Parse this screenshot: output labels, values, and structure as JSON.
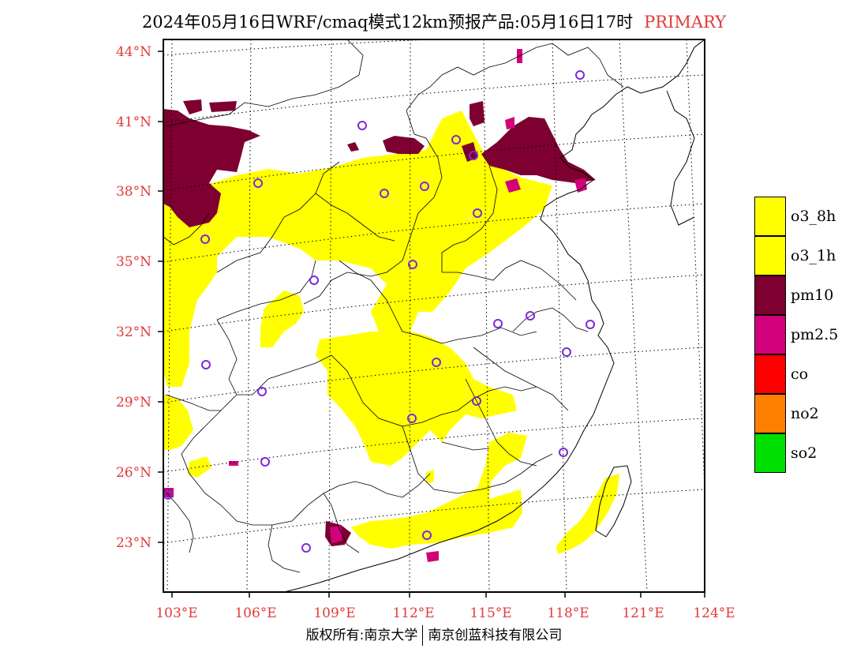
{
  "header": {
    "title": "2024年05月16日WRF/cmaq模式12km预报产品:05月16日17时",
    "tag": "PRIMARY"
  },
  "map": {
    "lat_labels": [
      "44°N",
      "41°N",
      "38°N",
      "35°N",
      "32°N",
      "29°N",
      "26°N",
      "23°N"
    ],
    "lon_labels": [
      "103°E",
      "106°E",
      "109°E",
      "112°E",
      "115°E",
      "118°E",
      "121°E",
      "124°E"
    ]
  },
  "legend": {
    "items": [
      {
        "label": "o3_8h",
        "color": "#ffff00"
      },
      {
        "label": "o3_1h",
        "color": "#ffff00"
      },
      {
        "label": "pm10",
        "color": "#7d0030"
      },
      {
        "label": "pm2.5",
        "color": "#d2007a"
      },
      {
        "label": "co",
        "color": "#ff0000"
      },
      {
        "label": "no2",
        "color": "#ff8000"
      },
      {
        "label": "so2",
        "color": "#00e000"
      }
    ]
  },
  "footer": {
    "left": "版权所有:南京大学",
    "right": "南京创蓝科技有限公司"
  }
}
